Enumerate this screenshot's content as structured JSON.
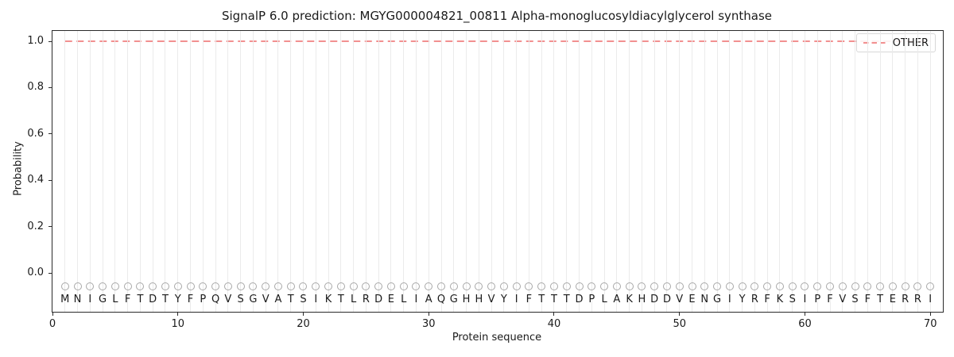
{
  "chart_data": {
    "type": "line",
    "title": "SignalP 6.0 prediction: MGYG000004821_00811 Alpha-monoglucosyldiacylglycerol synthase",
    "xlabel": "Protein sequence",
    "ylabel": "Probability",
    "xlim": [
      0,
      71
    ],
    "ylim": [
      -0.17,
      1.05
    ],
    "x_ticks": [
      0,
      10,
      20,
      30,
      40,
      50,
      60,
      70
    ],
    "y_ticks": [
      0.0,
      0.2,
      0.4,
      0.6,
      0.8,
      1.0
    ],
    "grid": {
      "vertical_line_per_residue": true,
      "color": "#ebebeb"
    },
    "sequence": "MNIGLFTDTYFPQVSGVATSIKTLRDELIAQGHHVYIFTTTDPLAKHDDVENGIYRFKSIPFVSFTERRI",
    "sequence_length": 70,
    "series": [
      {
        "name": "OTHER",
        "line_style": "dashed",
        "color": "#f08080",
        "x_start": 1,
        "x_end": 70,
        "constant_y": 1.0
      }
    ],
    "residue_markers": {
      "symbol": "circle-outline",
      "color": "#a8a8a8",
      "y": -0.058
    },
    "legend": {
      "position": "upper-right",
      "entries": [
        {
          "label": "OTHER",
          "color": "#f08080",
          "line_style": "dashed"
        }
      ]
    },
    "colors": {
      "text": "#1a1a1a",
      "spine": "#2a2a2a",
      "background": "#ffffff"
    }
  }
}
